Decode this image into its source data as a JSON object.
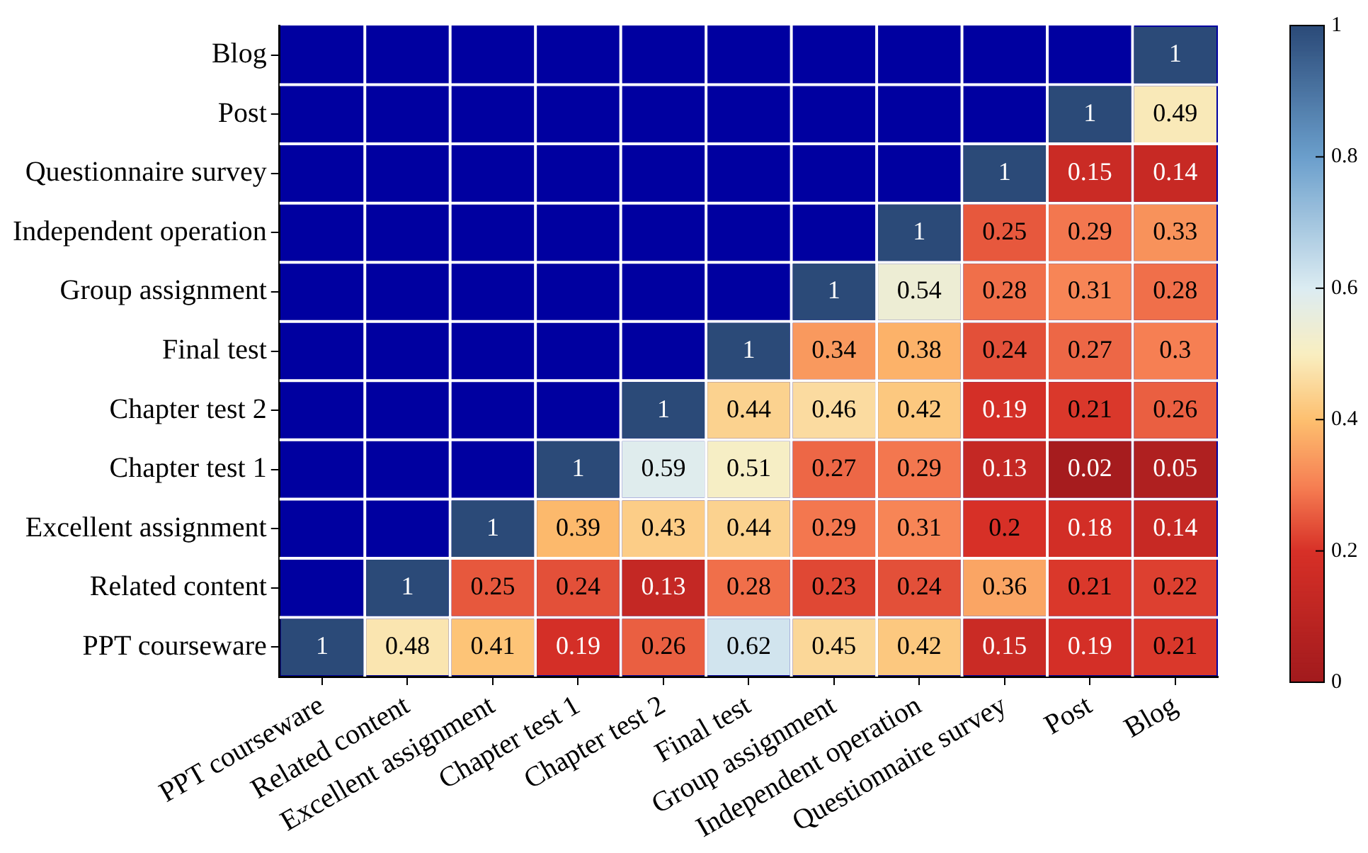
{
  "chart_data": {
    "type": "heatmap",
    "categories": [
      "PPT courseware",
      "Related content",
      "Excellent assignment",
      "Chapter test 1",
      "Chapter test 2",
      "Final test",
      "Group assignment",
      "Independent operation",
      "Questionnaire survey",
      "Post",
      "Blog"
    ],
    "y_categories": [
      "Blog",
      "Post",
      "Questionnaire survey",
      "Independent operation",
      "Group assignment",
      "Final test",
      "Chapter test 2",
      "Chapter test 1",
      "Excellent assignment",
      "Related content",
      "PPT courseware"
    ],
    "cells": [
      [
        null,
        null,
        null,
        null,
        null,
        null,
        null,
        null,
        null,
        null,
        1
      ],
      [
        null,
        null,
        null,
        null,
        null,
        null,
        null,
        null,
        null,
        1,
        0.49
      ],
      [
        null,
        null,
        null,
        null,
        null,
        null,
        null,
        null,
        1,
        0.15,
        0.14
      ],
      [
        null,
        null,
        null,
        null,
        null,
        null,
        null,
        1,
        0.25,
        0.29,
        0.33
      ],
      [
        null,
        null,
        null,
        null,
        null,
        null,
        1,
        0.54,
        0.28,
        0.31,
        0.28
      ],
      [
        null,
        null,
        null,
        null,
        null,
        1,
        0.34,
        0.38,
        0.24,
        0.27,
        0.3
      ],
      [
        null,
        null,
        null,
        null,
        1,
        0.44,
        0.46,
        0.42,
        0.19,
        0.21,
        0.26
      ],
      [
        null,
        null,
        null,
        1,
        0.59,
        0.51,
        0.27,
        0.29,
        0.13,
        0.02,
        0.05
      ],
      [
        null,
        null,
        1,
        0.39,
        0.43,
        0.44,
        0.29,
        0.31,
        0.2,
        0.18,
        0.14
      ],
      [
        null,
        1,
        0.25,
        0.24,
        0.13,
        0.28,
        0.23,
        0.24,
        0.36,
        0.21,
        0.22
      ],
      [
        1,
        0.48,
        0.41,
        0.19,
        0.26,
        0.62,
        0.45,
        0.42,
        0.15,
        0.19,
        0.21
      ]
    ],
    "clim": [
      0,
      1
    ],
    "cticks": [
      0,
      0.2,
      0.4,
      0.6,
      0.8,
      1
    ],
    "data_labels": true
  }
}
